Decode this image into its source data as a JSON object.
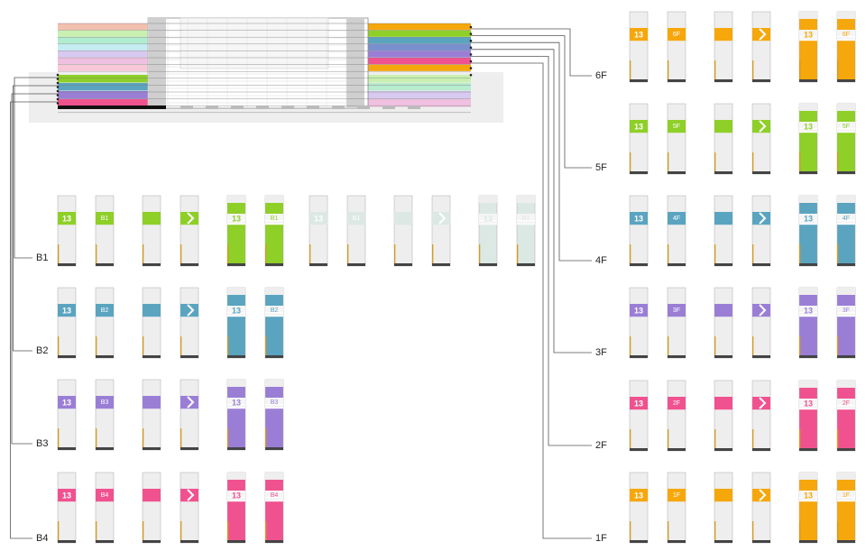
{
  "colors": {
    "orange": "#f5a70c",
    "green": "#8ecf28",
    "blue": "#5aa4c0",
    "purple": "#9a7ed6",
    "pink": "#f0528f",
    "pale_green": "#dce8e4",
    "panel": "#eeeeee",
    "outline": "#aaaaaa",
    "base": "#444444",
    "edge": "#d49a1e",
    "line": "#555555",
    "label": "#222222"
  },
  "badge_number": "13",
  "right_floors": [
    {
      "id": "6F",
      "label": "6F",
      "color": "orange"
    },
    {
      "id": "5F",
      "label": "5F",
      "color": "green"
    },
    {
      "id": "4F",
      "label": "4F",
      "color": "blue"
    },
    {
      "id": "3F",
      "label": "3F",
      "color": "purple"
    },
    {
      "id": "2F",
      "label": "2F",
      "color": "pink"
    },
    {
      "id": "1F",
      "label": "1F",
      "color": "orange"
    }
  ],
  "left_floors": [
    {
      "id": "B1",
      "label": "B1",
      "color": "green",
      "extra_color": "pale_green",
      "has_extra": true
    },
    {
      "id": "B2",
      "label": "B2",
      "color": "blue",
      "has_extra": false
    },
    {
      "id": "B3",
      "label": "B3",
      "color": "purple",
      "has_extra": false
    },
    {
      "id": "B4",
      "label": "B4",
      "color": "pink",
      "has_extra": false
    }
  ],
  "section": {
    "upper_left_bands": [
      "#f3c0b0",
      "#c9f0b0",
      "#b0eccf",
      "#c5ecf3",
      "#d8c9f0",
      "#f0c0e0",
      "#f8c8d8"
    ],
    "upper_right_bands": [
      "#f5a70c",
      "#8ecf28",
      "#5aa4c0",
      "#7a8fd0",
      "#9a7ed6",
      "#f0528f",
      "#f5a70c"
    ],
    "lower_left_bands": [
      "#8ecf28",
      "#5aa4c0",
      "#9a7ed6",
      "#f0528f"
    ],
    "lower_right_bands": [
      "#c9f0b0",
      "#b8ecd0",
      "#d8c9f0",
      "#f0c0e0"
    ]
  }
}
